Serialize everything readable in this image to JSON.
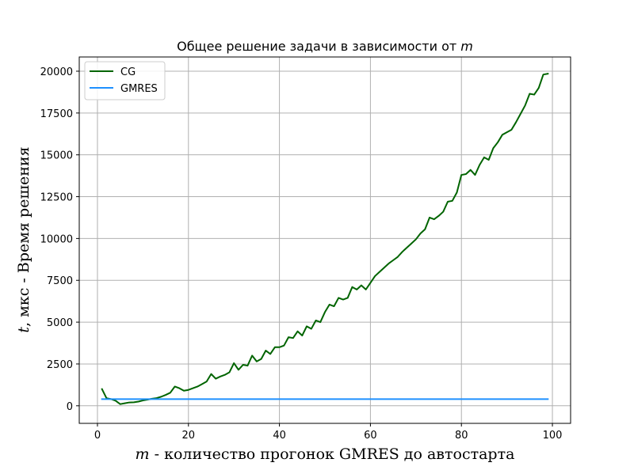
{
  "chart_data": {
    "type": "line",
    "title": "Общее решение задачи в зависимости от m",
    "title_parts": {
      "text": "Общее решение задачи в зависимости от ",
      "var": "m"
    },
    "xlabel": "m - количество прогонок GMRES до автостарта",
    "xlabel_parts": {
      "var": "m",
      "text": " - количество прогонок GMRES до автостарта"
    },
    "ylabel": "t, мкс - Время решения",
    "ylabel_parts": {
      "var": "t",
      "text": ", мкс - Время решения"
    },
    "xlim": [
      -4,
      104
    ],
    "ylim": [
      -1050,
      20850
    ],
    "xticks": [
      0,
      20,
      40,
      60,
      80,
      100
    ],
    "yticks": [
      0,
      2500,
      5000,
      7500,
      10000,
      12500,
      15000,
      17500,
      20000
    ],
    "grid": true,
    "legend_position": "upper-left",
    "series": [
      {
        "name": "CG",
        "color": "#006400",
        "x": [
          1,
          2,
          3,
          4,
          5,
          6,
          7,
          8,
          9,
          10,
          11,
          12,
          13,
          14,
          15,
          16,
          17,
          18,
          19,
          20,
          21,
          22,
          23,
          24,
          25,
          26,
          27,
          28,
          29,
          30,
          31,
          32,
          33,
          34,
          35,
          36,
          37,
          38,
          39,
          40,
          41,
          42,
          43,
          44,
          45,
          46,
          47,
          48,
          49,
          50,
          51,
          52,
          53,
          54,
          55,
          56,
          57,
          58,
          59,
          60,
          61,
          62,
          63,
          64,
          65,
          66,
          67,
          68,
          69,
          70,
          71,
          72,
          73,
          74,
          75,
          76,
          77,
          78,
          79,
          80,
          81,
          82,
          83,
          84,
          85,
          86,
          87,
          88,
          89,
          90,
          91,
          92,
          93,
          94,
          95,
          96,
          97,
          98,
          99
        ],
        "y": [
          1000,
          450,
          400,
          300,
          100,
          150,
          200,
          210,
          250,
          320,
          370,
          420,
          460,
          540,
          650,
          780,
          1150,
          1050,
          900,
          950,
          1050,
          1150,
          1300,
          1450,
          1900,
          1620,
          1750,
          1850,
          2000,
          2550,
          2150,
          2450,
          2400,
          3000,
          2650,
          2800,
          3300,
          3100,
          3500,
          3500,
          3600,
          4100,
          4050,
          4450,
          4200,
          4750,
          4600,
          5100,
          5000,
          5600,
          6050,
          5950,
          6450,
          6350,
          6450,
          7100,
          6950,
          7200,
          6950,
          7350,
          7750,
          8000,
          8250,
          8500,
          8700,
          8900,
          9200,
          9450,
          9700,
          9950,
          10300,
          10550,
          11250,
          11150,
          11350,
          11600,
          12200,
          12250,
          12750,
          13800,
          13850,
          14100,
          13800,
          14400,
          14850,
          14700,
          15400,
          15750,
          16200,
          16350,
          16500,
          16950,
          17450,
          17950,
          18650,
          18600,
          19000,
          19800,
          19850
        ]
      },
      {
        "name": "GMRES",
        "color": "#1e90ff",
        "x": [
          1,
          99
        ],
        "y": [
          400,
          400
        ]
      }
    ]
  }
}
